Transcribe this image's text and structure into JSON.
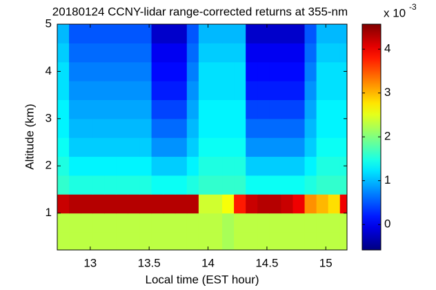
{
  "chart_data": {
    "type": "heatmap",
    "title": "20180124 CCNY-lidar range-corrected returns at 355-nm",
    "x_label": "Local time (EST hour)",
    "y_label": "Altitude (km)",
    "colorbar_label": "x 10",
    "colorbar_exponent": "-3",
    "colormap": "jet",
    "xlim": [
      12.72,
      15.18
    ],
    "xticks": [
      13,
      13.5,
      14,
      14.5,
      15
    ],
    "ylim": [
      0.22,
      5
    ],
    "yticks": [
      1,
      2,
      3,
      4,
      5
    ],
    "clim": [
      -0.58,
      4.57
    ],
    "cticks": [
      0,
      1,
      2,
      3,
      4
    ],
    "x": [
      12.77,
      12.87,
      12.97,
      13.07,
      13.17,
      13.27,
      13.37,
      13.47,
      13.57,
      13.67,
      13.77,
      13.87,
      13.97,
      14.07,
      14.17,
      14.27,
      14.37,
      14.47,
      14.57,
      14.67,
      14.77,
      14.87,
      14.97,
      15.07,
      15.17
    ],
    "y": [
      0.4,
      0.8,
      1.2,
      1.6,
      2.0,
      2.4,
      2.8,
      3.2,
      3.6,
      4.0,
      4.4,
      4.8
    ],
    "z": [
      [
        2.3,
        2.3,
        2.3,
        2.3,
        2.3,
        2.3,
        2.3,
        2.3,
        2.3,
        2.3,
        2.3,
        2.3,
        2.3,
        2.3,
        2.2,
        2.3,
        2.3,
        2.3,
        2.3,
        2.3,
        2.3,
        2.3,
        2.3,
        2.3,
        2.3
      ],
      [
        2.3,
        2.3,
        2.3,
        2.3,
        2.3,
        2.3,
        2.3,
        2.3,
        2.3,
        2.3,
        2.3,
        2.3,
        2.3,
        2.3,
        2.2,
        2.3,
        2.3,
        2.3,
        2.3,
        2.3,
        2.3,
        2.3,
        2.3,
        2.3,
        2.3
      ],
      [
        4.2,
        4.3,
        4.3,
        4.3,
        4.3,
        4.3,
        4.3,
        4.3,
        4.3,
        4.3,
        4.3,
        4.3,
        2.4,
        2.4,
        2.6,
        3.8,
        4.2,
        4.3,
        4.3,
        4.2,
        4.0,
        3.2,
        3.0,
        2.8,
        4.0
      ],
      [
        1.6,
        1.5,
        1.5,
        1.5,
        1.5,
        1.5,
        1.5,
        1.5,
        1.4,
        1.4,
        1.4,
        1.5,
        1.6,
        1.6,
        1.6,
        1.6,
        1.4,
        1.4,
        1.4,
        1.4,
        1.4,
        1.5,
        1.6,
        1.6,
        1.6
      ],
      [
        1.5,
        1.3,
        1.3,
        1.3,
        1.3,
        1.3,
        1.3,
        1.3,
        1.1,
        1.1,
        1.1,
        1.3,
        1.5,
        1.5,
        1.5,
        1.5,
        1.1,
        1.1,
        1.1,
        1.1,
        1.1,
        1.3,
        1.5,
        1.5,
        1.5
      ],
      [
        1.4,
        1.1,
        1.1,
        1.1,
        1.1,
        1.1,
        1.1,
        1.1,
        0.8,
        0.8,
        0.8,
        1.1,
        1.4,
        1.4,
        1.4,
        1.4,
        0.8,
        0.8,
        0.8,
        0.8,
        0.8,
        1.1,
        1.4,
        1.4,
        1.4
      ],
      [
        1.3,
        1.0,
        1.0,
        1.0,
        1.0,
        1.0,
        1.0,
        1.0,
        0.6,
        0.6,
        0.6,
        1.0,
        1.3,
        1.3,
        1.3,
        1.3,
        0.6,
        0.6,
        0.6,
        0.6,
        0.6,
        1.0,
        1.3,
        1.3,
        1.3
      ],
      [
        1.3,
        0.9,
        0.9,
        0.9,
        0.9,
        0.9,
        0.9,
        0.9,
        0.4,
        0.4,
        0.4,
        0.9,
        1.3,
        1.3,
        1.3,
        1.3,
        0.4,
        0.4,
        0.4,
        0.4,
        0.4,
        0.9,
        1.3,
        1.3,
        1.3
      ],
      [
        1.2,
        0.8,
        0.8,
        0.8,
        0.8,
        0.8,
        0.8,
        0.8,
        0.2,
        0.2,
        0.2,
        0.8,
        1.2,
        1.2,
        1.2,
        1.2,
        0.2,
        0.2,
        0.2,
        0.2,
        0.2,
        0.8,
        1.2,
        1.2,
        1.2
      ],
      [
        1.2,
        0.7,
        0.7,
        0.7,
        0.7,
        0.7,
        0.7,
        0.7,
        0.1,
        0.1,
        0.1,
        0.7,
        1.2,
        1.2,
        1.2,
        1.2,
        0.1,
        0.1,
        0.1,
        0.1,
        0.1,
        0.7,
        1.2,
        1.2,
        1.2
      ],
      [
        1.1,
        0.6,
        0.6,
        0.6,
        0.6,
        0.6,
        0.6,
        0.6,
        0.0,
        0.0,
        0.0,
        0.6,
        1.1,
        1.1,
        1.1,
        1.1,
        0.0,
        0.0,
        0.0,
        0.0,
        0.0,
        0.6,
        1.1,
        1.1,
        1.1
      ],
      [
        1.0,
        0.5,
        0.5,
        0.5,
        0.5,
        0.5,
        0.5,
        0.5,
        -0.2,
        -0.2,
        -0.2,
        0.5,
        1.0,
        1.0,
        1.0,
        1.0,
        -0.2,
        -0.2,
        -0.2,
        -0.2,
        -0.2,
        0.5,
        1.0,
        1.0,
        1.0
      ]
    ]
  }
}
